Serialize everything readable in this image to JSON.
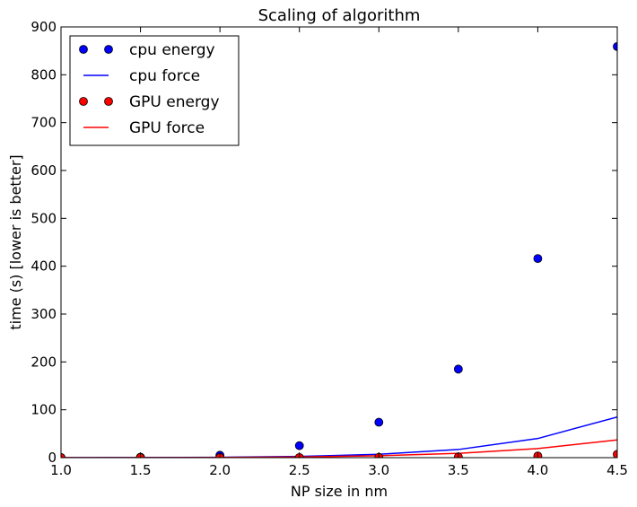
{
  "chart_data": {
    "type": "scatter",
    "title": "Scaling of algorithm",
    "xlabel": "NP size in nm",
    "ylabel": "time (s) [lower is better]",
    "xlim": [
      1.0,
      4.5
    ],
    "ylim": [
      0,
      900
    ],
    "xticks": [
      "1.0",
      "1.5",
      "2.0",
      "2.5",
      "3.0",
      "3.5",
      "4.0",
      "4.5"
    ],
    "yticks": [
      "0",
      "100",
      "200",
      "300",
      "400",
      "500",
      "600",
      "700",
      "800",
      "900"
    ],
    "grid": false,
    "legend_position": "top-left",
    "series": [
      {
        "name": "cpu energy",
        "style": "markers",
        "color": "#0000ff",
        "x": [
          1.0,
          1.5,
          2.0,
          2.5,
          3.0,
          3.5,
          4.0,
          4.5
        ],
        "y": [
          0.2,
          1.0,
          5,
          25,
          74,
          185,
          416,
          859
        ]
      },
      {
        "name": "cpu force",
        "style": "line",
        "color": "#0000ff",
        "x": [
          1.0,
          1.5,
          2.0,
          2.5,
          3.0,
          3.5,
          4.0,
          4.5
        ],
        "y": [
          0.05,
          0.2,
          0.8,
          2.5,
          7,
          17,
          40,
          85
        ]
      },
      {
        "name": "GPU energy",
        "style": "markers",
        "color": "#ff0000",
        "x": [
          1.0,
          1.5,
          2.0,
          2.5,
          3.0,
          3.5,
          4.0,
          4.5
        ],
        "y": [
          0.02,
          0.05,
          0.1,
          0.3,
          0.6,
          1.5,
          3.5,
          7
        ]
      },
      {
        "name": "GPU force",
        "style": "line",
        "color": "#ff0000",
        "x": [
          1.0,
          1.5,
          2.0,
          2.5,
          3.0,
          3.5,
          4.0,
          4.5
        ],
        "y": [
          0.03,
          0.1,
          0.3,
          1.5,
          4,
          9,
          19,
          37
        ]
      }
    ]
  }
}
